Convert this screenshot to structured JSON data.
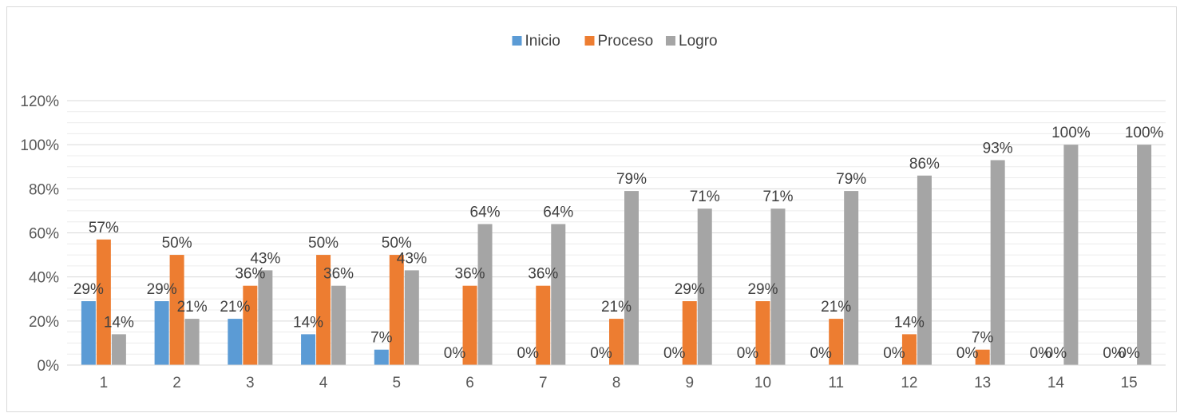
{
  "chart_data": {
    "type": "bar",
    "title": "",
    "xlabel": "",
    "ylabel": "",
    "categories": [
      "1",
      "2",
      "3",
      "4",
      "5",
      "6",
      "7",
      "8",
      "9",
      "10",
      "11",
      "12",
      "13",
      "14",
      "15"
    ],
    "series": [
      {
        "name": "Inicio",
        "color": "#5b9bd5",
        "values": [
          29,
          29,
          21,
          14,
          7,
          0,
          0,
          0,
          0,
          0,
          0,
          0,
          0,
          0,
          0
        ]
      },
      {
        "name": "Proceso",
        "color": "#ed7d31",
        "values": [
          57,
          50,
          36,
          50,
          50,
          36,
          36,
          21,
          29,
          29,
          21,
          14,
          7,
          0,
          0
        ]
      },
      {
        "name": "Logro",
        "color": "#a5a5a5",
        "values": [
          14,
          21,
          43,
          36,
          43,
          64,
          64,
          79,
          71,
          71,
          79,
          86,
          93,
          100,
          100
        ]
      }
    ],
    "ylim": [
      0,
      120
    ],
    "yticks": [
      0,
      20,
      40,
      60,
      80,
      100,
      120
    ],
    "ytick_labels": [
      "0%",
      "20%",
      "40%",
      "60%",
      "80%",
      "100%",
      "120%"
    ],
    "data_labels": [
      [
        "29%",
        "29%",
        "21%",
        "14%",
        "7%",
        "0%",
        "0%",
        "0%",
        "0%",
        "0%",
        "0%",
        "0%",
        "0%",
        "0%",
        "0%"
      ],
      [
        "57%",
        "50%",
        "36%",
        "50%",
        "50%",
        "36%",
        "36%",
        "21%",
        "29%",
        "29%",
        "21%",
        "14%",
        "7%",
        "0%",
        "0%"
      ],
      [
        "14%",
        "21%",
        "43%",
        "36%",
        "43%",
        "64%",
        "64%",
        "79%",
        "71%",
        "71%",
        "79%",
        "86%",
        "93%",
        "100%",
        "100%"
      ]
    ],
    "legend_position": "top",
    "grid": true
  }
}
